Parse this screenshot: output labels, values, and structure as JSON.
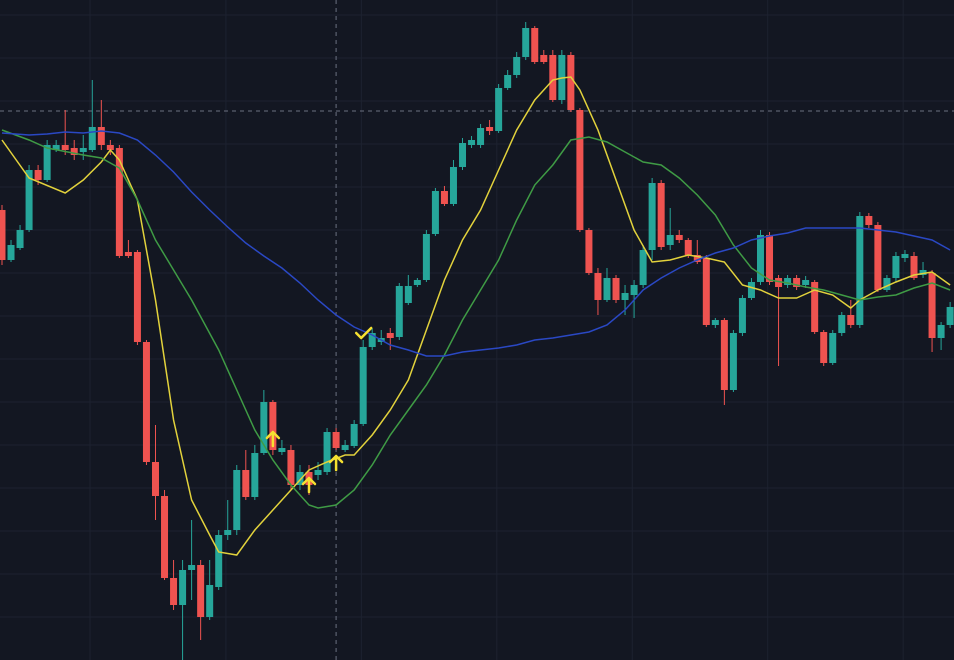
{
  "chart_data": {
    "type": "candlestick",
    "background": "#131722",
    "grid_color": "#1d2230",
    "up_color": "#26a69a",
    "down_color": "#ef5350",
    "xlim": [
      -0.22,
      105.43
    ],
    "ylim": [
      0,
      660
    ],
    "xgrid": [
      9.75,
      24.8,
      39.8,
      54.8,
      69.8,
      84.8,
      99.8
    ],
    "ygrid": [
      43,
      86,
      129,
      172,
      215,
      258,
      301,
      344,
      387,
      430,
      473,
      516,
      559,
      602,
      645
    ],
    "x": [
      0,
      1,
      2,
      3,
      4,
      5,
      6,
      7,
      8,
      9,
      10,
      11,
      12,
      13,
      14,
      15,
      16,
      17,
      18,
      19,
      20,
      21,
      22,
      23,
      24,
      25,
      26,
      27,
      28,
      29,
      30,
      31,
      32,
      33,
      34,
      35,
      36,
      37,
      38,
      39,
      40,
      41,
      42,
      43,
      44,
      45,
      46,
      47,
      48,
      49,
      50,
      51,
      52,
      53,
      54,
      55,
      56,
      57,
      58,
      59,
      60,
      61,
      62,
      63,
      64,
      65,
      66,
      67,
      68,
      69,
      70,
      71,
      72,
      73,
      74,
      75,
      76,
      77,
      78,
      79,
      80,
      81,
      82,
      83,
      84,
      85,
      86,
      87,
      88,
      89,
      90,
      91,
      92,
      93,
      94,
      95,
      96,
      97,
      98,
      99,
      100,
      101,
      102,
      103,
      104,
      105
    ],
    "open": [
      450,
      400,
      412,
      430,
      490,
      480,
      510,
      515,
      512,
      508,
      510,
      533,
      515,
      512,
      408,
      408,
      318,
      198,
      164,
      82,
      55,
      90,
      95,
      43,
      73,
      125,
      130,
      190,
      163,
      207,
      258,
      208,
      210,
      175,
      188,
      185,
      188,
      228,
      210,
      214,
      236,
      313,
      318,
      327,
      323,
      357,
      375,
      380,
      426,
      469,
      456,
      493,
      515,
      515,
      533,
      529,
      572,
      585,
      603,
      632,
      605,
      605,
      560,
      605,
      550,
      430,
      387,
      360,
      382,
      360,
      365,
      375,
      410,
      477,
      415,
      425,
      420,
      405,
      402,
      335,
      340,
      270,
      327,
      362,
      378,
      425,
      382,
      375,
      382,
      375,
      378,
      328,
      297,
      327,
      345,
      335,
      444,
      435,
      370,
      382,
      402,
      404,
      385,
      387,
      322,
      335
    ],
    "high": [
      455,
      420,
      435,
      495,
      495,
      520,
      520,
      550,
      520,
      525,
      580,
      560,
      520,
      515,
      420,
      410,
      320,
      235,
      170,
      100,
      100,
      140,
      100,
      100,
      130,
      160,
      195,
      210,
      215,
      270,
      260,
      220,
      215,
      195,
      195,
      198,
      232,
      232,
      220,
      240,
      320,
      332,
      330,
      332,
      377,
      385,
      382,
      430,
      472,
      474,
      500,
      522,
      524,
      536,
      540,
      576,
      590,
      608,
      638,
      634,
      610,
      610,
      610,
      608,
      552,
      432,
      392,
      392,
      385,
      375,
      380,
      415,
      482,
      480,
      452,
      430,
      422,
      420,
      405,
      342,
      342,
      330,
      365,
      382,
      430,
      428,
      385,
      385,
      385,
      384,
      380,
      330,
      330,
      348,
      360,
      448,
      447,
      438,
      385,
      408,
      410,
      408,
      398,
      390,
      338,
      358
    ],
    "low": [
      395,
      398,
      410,
      428,
      475,
      478,
      508,
      505,
      500,
      500,
      508,
      510,
      505,
      402,
      402,
      315,
      195,
      140,
      80,
      50,
      0,
      60,
      20,
      40,
      70,
      120,
      125,
      160,
      160,
      205,
      205,
      205,
      170,
      170,
      165,
      180,
      185,
      210,
      208,
      212,
      234,
      310,
      315,
      310,
      320,
      355,
      373,
      378,
      424,
      454,
      454,
      490,
      512,
      512,
      525,
      527,
      570,
      582,
      600,
      596,
      596,
      558,
      556,
      548,
      428,
      385,
      345,
      358,
      357,
      345,
      342,
      372,
      400,
      410,
      410,
      417,
      402,
      396,
      333,
      332,
      255,
      268,
      324,
      360,
      375,
      375,
      294,
      372,
      370,
      372,
      326,
      294,
      295,
      324,
      332,
      332,
      432,
      368,
      368,
      378,
      398,
      380,
      382,
      308,
      310,
      332
    ],
    "close": [
      400,
      415,
      430,
      490,
      480,
      515,
      515,
      510,
      505,
      512,
      533,
      515,
      510,
      404,
      404,
      318,
      198,
      164,
      82,
      55,
      90,
      95,
      43,
      75,
      125,
      130,
      190,
      163,
      207,
      258,
      210,
      212,
      175,
      188,
      175,
      190,
      228,
      212,
      215,
      236,
      313,
      327,
      322,
      322,
      374,
      374,
      380,
      426,
      469,
      456,
      493,
      517,
      520,
      532,
      529,
      572,
      585,
      603,
      632,
      598,
      598,
      560,
      605,
      550,
      430,
      387,
      360,
      382,
      360,
      367,
      375,
      410,
      477,
      413,
      425,
      420,
      405,
      398,
      335,
      340,
      270,
      327,
      362,
      378,
      425,
      378,
      373,
      382,
      373,
      380,
      328,
      297,
      327,
      345,
      335,
      444,
      435,
      370,
      382,
      404,
      406,
      382,
      390,
      322,
      335,
      353
    ],
    "series": [
      {
        "color": "#e2d23c",
        "x": [
          0,
          3,
          7,
          9,
          11,
          12,
          13,
          15,
          17,
          19,
          21,
          23,
          24,
          26,
          28,
          30,
          32,
          34,
          36,
          38,
          39,
          41,
          43,
          45,
          47,
          49,
          51,
          53,
          55,
          57,
          59,
          61,
          62,
          63,
          64,
          66,
          68,
          70,
          72,
          74,
          76,
          78,
          80,
          82,
          84,
          86,
          88,
          90,
          92,
          94,
          95,
          97,
          99,
          101,
          103,
          105
        ],
        "values": [
          520,
          482,
          467,
          480,
          498,
          510,
          500,
          460,
          360,
          240,
          160,
          125,
          108,
          105,
          130,
          150,
          170,
          190,
          198,
          205,
          205,
          225,
          250,
          280,
          330,
          380,
          420,
          450,
          490,
          530,
          560,
          580,
          582,
          583,
          570,
          530,
          480,
          430,
          398,
          400,
          405,
          402,
          398,
          375,
          370,
          362,
          362,
          370,
          365,
          352,
          360,
          370,
          378,
          385,
          388,
          375
        ]
      },
      {
        "color": "#3f9b45",
        "x": [
          0,
          3,
          5,
          9,
          11,
          13,
          15,
          17,
          19,
          21,
          24,
          26,
          28,
          30,
          32,
          34,
          35,
          37,
          39,
          41,
          43,
          45,
          47,
          49,
          51,
          53,
          55,
          57,
          59,
          61,
          63,
          65,
          67,
          69,
          71,
          73,
          75,
          77,
          79,
          81,
          83,
          85,
          87,
          89,
          91,
          93,
          95,
          97,
          99,
          101,
          103,
          105
        ],
        "values": [
          530,
          520,
          512,
          505,
          502,
          492,
          460,
          420,
          390,
          360,
          310,
          270,
          230,
          200,
          175,
          155,
          152,
          155,
          170,
          195,
          225,
          250,
          275,
          305,
          340,
          370,
          400,
          440,
          475,
          495,
          520,
          523,
          518,
          508,
          498,
          495,
          482,
          465,
          445,
          415,
          392,
          380,
          377,
          373,
          370,
          365,
          360,
          363,
          365,
          372,
          377,
          370
        ]
      },
      {
        "color": "#2a48c4",
        "x": [
          0,
          3,
          5,
          7,
          9,
          11,
          13,
          15,
          17,
          19,
          21,
          23,
          25,
          27,
          29,
          31,
          33,
          35,
          37,
          39,
          41,
          43,
          45,
          47,
          49,
          51,
          53,
          55,
          57,
          59,
          61,
          63,
          65,
          67,
          69,
          71,
          73,
          75,
          77,
          79,
          81,
          83,
          85,
          87,
          89,
          91,
          93,
          95,
          97,
          99,
          101,
          103,
          105
        ],
        "values": [
          527,
          525,
          526,
          528,
          527,
          529,
          527,
          520,
          505,
          488,
          468,
          450,
          433,
          417,
          404,
          392,
          377,
          360,
          345,
          333,
          325,
          315,
          310,
          304,
          304,
          308,
          310,
          312,
          315,
          320,
          322,
          325,
          328,
          335,
          350,
          370,
          382,
          392,
          400,
          407,
          412,
          420,
          424,
          427,
          432,
          432,
          432,
          432,
          430,
          428,
          424,
          420,
          410
        ]
      }
    ],
    "marker_color": "#f5e031",
    "buy_markers": {
      "x": [
        30,
        34,
        37
      ],
      "values": [
        228,
        182,
        204
      ]
    },
    "check_marker": {
      "x": 40,
      "value": 327
    },
    "crosshair": {
      "x": 37,
      "value": 549,
      "color": "#6b7080"
    }
  }
}
